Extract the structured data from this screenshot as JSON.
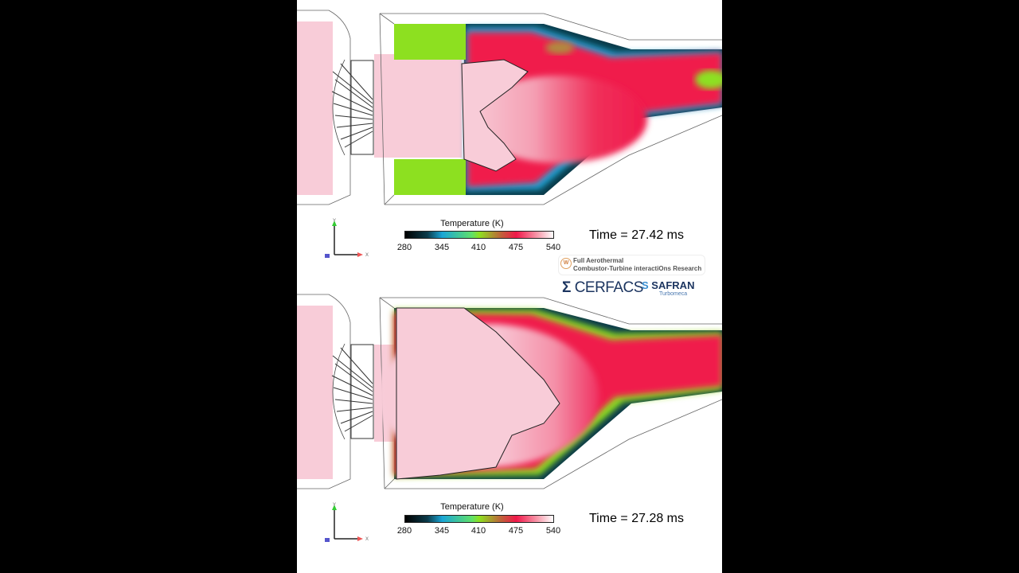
{
  "panels": [
    {
      "colorbar": {
        "title": "Temperature (K)",
        "ticks": [
          "280",
          "345",
          "410",
          "475",
          "540"
        ]
      },
      "time": "Time = 27.42 ms",
      "axes": {
        "y": "Y",
        "x": "X"
      }
    },
    {
      "colorbar": {
        "title": "Temperature (K)",
        "ticks": [
          "280",
          "345",
          "410",
          "475",
          "540"
        ]
      },
      "time": "Time = 27.28 ms",
      "axes": {
        "y": "Y",
        "x": "X"
      }
    }
  ],
  "logos": {
    "factor_line1": "Full Aerothermal",
    "factor_line2": "Combustor-Turbine interactiOns Research",
    "cerfacs": "CERFACS",
    "safran": "SAFRAN",
    "turbomeca": "Turbomeca"
  },
  "colors": {
    "hot": "#f0184a",
    "burnt": "#f8c8d4",
    "fresh": "#8de020",
    "cold": "#0b3b4a"
  }
}
